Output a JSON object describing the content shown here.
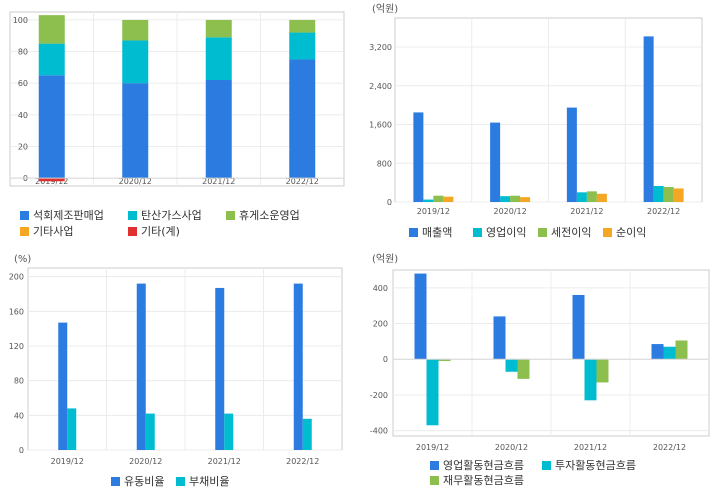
{
  "chart_data": [
    {
      "type": "bar",
      "stacked": true,
      "unit_label": "",
      "categories": [
        "2019/12",
        "2020/12",
        "2021/12",
        "2022/12"
      ],
      "ylim": [
        -5,
        105
      ],
      "yticks": [
        0,
        20,
        40,
        60,
        80,
        100
      ],
      "grid": true,
      "legend_position": "bottom",
      "series": [
        {
          "name": "석회제조판매업",
          "color": "#2b7be0",
          "values": [
            65,
            60,
            62,
            75
          ]
        },
        {
          "name": "탄산가스사업",
          "color": "#00bcd0",
          "values": [
            20,
            27,
            27,
            17
          ]
        },
        {
          "name": "휴게소운영업",
          "color": "#8cbf4e",
          "values": [
            18,
            13,
            11,
            8
          ]
        },
        {
          "name": "기타사업",
          "color": "#f5a623",
          "values": [
            0,
            0,
            0,
            0
          ]
        },
        {
          "name": "기타(계)",
          "color": "#e03030",
          "values": [
            -2,
            0,
            0,
            0
          ]
        }
      ]
    },
    {
      "type": "bar",
      "stacked": false,
      "unit_label": "(억원)",
      "categories": [
        "2019/12",
        "2020/12",
        "2021/12",
        "2022/12"
      ],
      "ylim": [
        0,
        3800
      ],
      "yticks": [
        0,
        800,
        1600,
        2400,
        3200
      ],
      "ytick_labels": [
        "0",
        "800",
        "1,600",
        "2,400",
        "3,200"
      ],
      "grid": true,
      "legend_position": "bottom",
      "series": [
        {
          "name": "매출액",
          "color": "#2b7be0",
          "values": [
            1850,
            1640,
            1950,
            3420
          ]
        },
        {
          "name": "영업이익",
          "color": "#00bcd0",
          "values": [
            50,
            120,
            200,
            330
          ]
        },
        {
          "name": "세전이익",
          "color": "#8cbf4e",
          "values": [
            130,
            130,
            220,
            310
          ]
        },
        {
          "name": "순이익",
          "color": "#f5a623",
          "values": [
            110,
            100,
            170,
            280
          ]
        }
      ]
    },
    {
      "type": "bar",
      "stacked": false,
      "unit_label": "(%)",
      "categories": [
        "2019/12",
        "2020/12",
        "2021/12",
        "2022/12"
      ],
      "ylim": [
        0,
        210
      ],
      "yticks": [
        0,
        40,
        80,
        120,
        160,
        200
      ],
      "grid": true,
      "legend_position": "bottom",
      "series": [
        {
          "name": "유동비율",
          "color": "#2b7be0",
          "values": [
            147,
            192,
            187,
            192
          ]
        },
        {
          "name": "부채비율",
          "color": "#00bcd0",
          "values": [
            48,
            42,
            42,
            36
          ]
        }
      ]
    },
    {
      "type": "bar",
      "stacked": false,
      "unit_label": "(억원)",
      "categories": [
        "2019/12",
        "2020/12",
        "2021/12",
        "2022/12"
      ],
      "ylim": [
        -430,
        500
      ],
      "yticks": [
        -400,
        -200,
        0,
        200,
        400
      ],
      "grid": true,
      "legend_position": "bottom",
      "series": [
        {
          "name": "영업활동현금흐름",
          "color": "#2b7be0",
          "values": [
            480,
            240,
            360,
            85
          ]
        },
        {
          "name": "투자활동현금흐름",
          "color": "#00bcd0",
          "values": [
            -370,
            -70,
            -230,
            70
          ]
        },
        {
          "name": "재무활동현금흐름",
          "color": "#8cbf4e",
          "values": [
            -10,
            -110,
            -130,
            105
          ]
        }
      ]
    }
  ]
}
